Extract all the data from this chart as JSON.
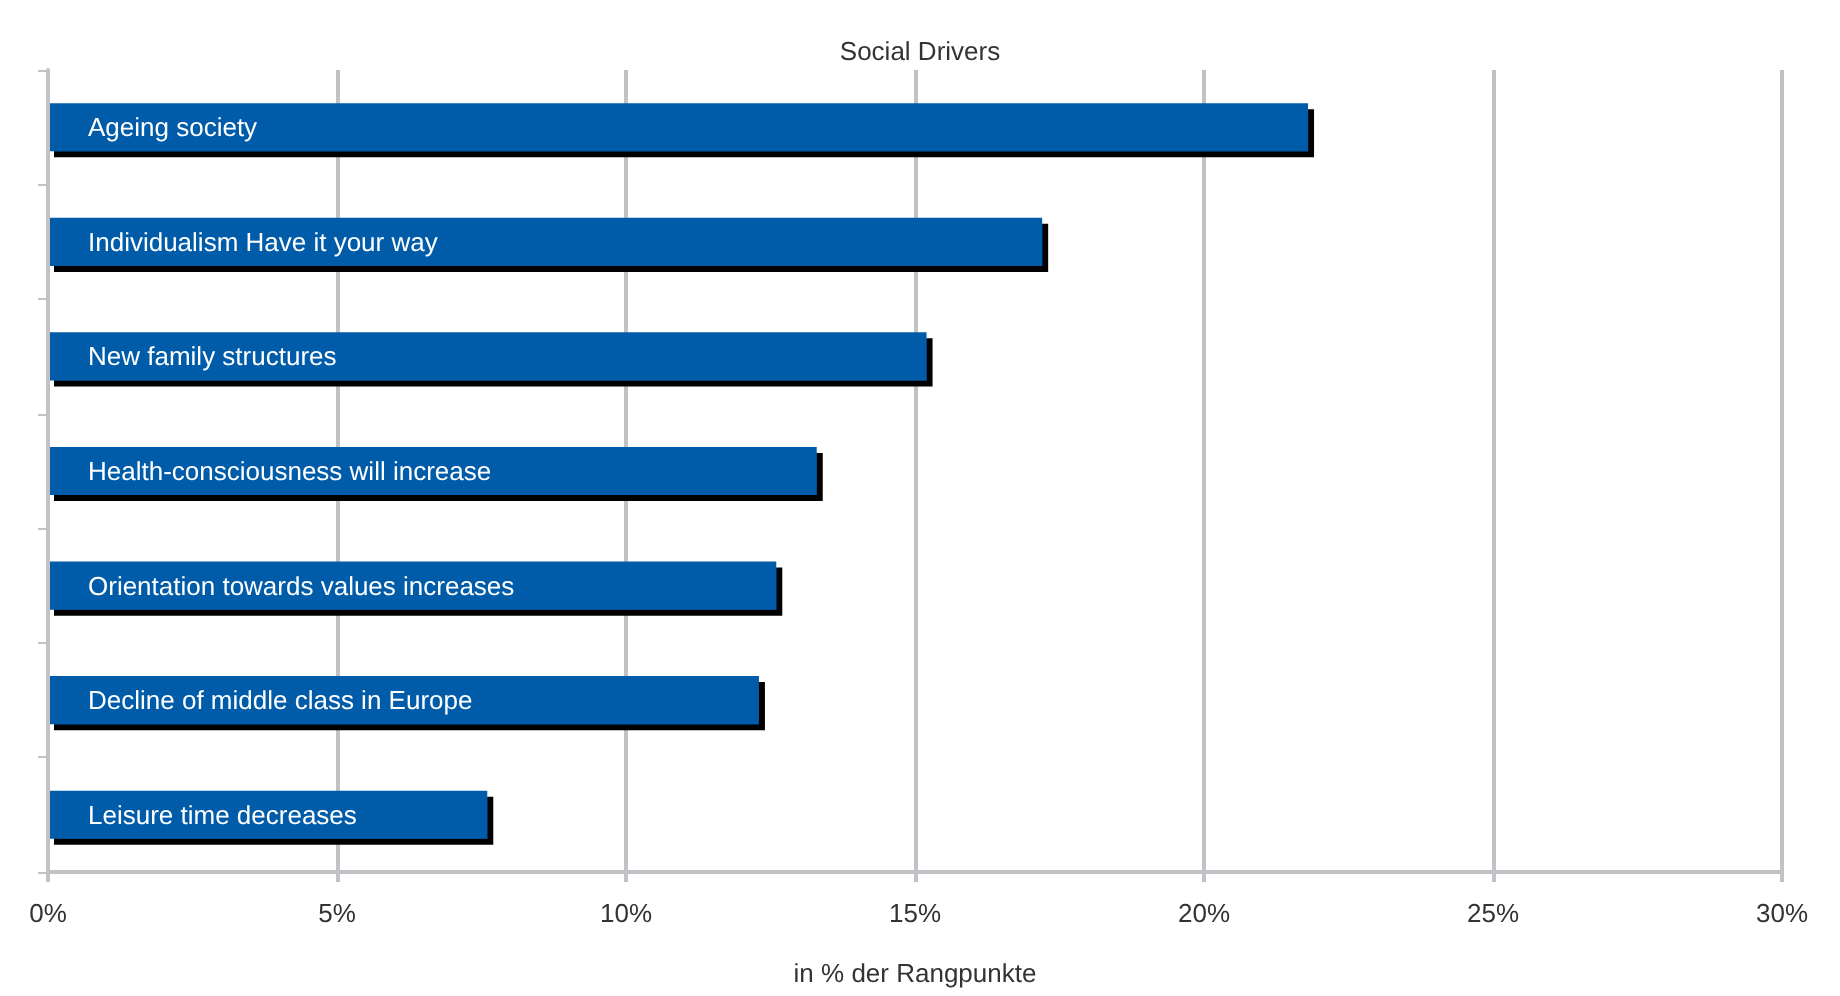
{
  "chart_data": {
    "type": "bar",
    "orientation": "horizontal",
    "title": "Social Drivers",
    "xlabel": "in % der Rangpunkte",
    "categories": [
      "Ageing society",
      "Individualism Have it your way",
      "New family structures",
      "Health-consciousness will increase",
      "Orientation towards values increases",
      "Decline of middle class in Europe",
      "Leisure time decreases"
    ],
    "values": [
      21.8,
      17.2,
      15.2,
      13.3,
      12.6,
      12.3,
      7.6
    ],
    "color": "#005ca9",
    "xlim": [
      0,
      30
    ],
    "xticks": [
      {
        "value": 0,
        "label": "0%"
      },
      {
        "value": 5,
        "label": "5%"
      },
      {
        "value": 10,
        "label": "10%"
      },
      {
        "value": 15,
        "label": "15%"
      },
      {
        "value": 20,
        "label": "20%"
      },
      {
        "value": 25,
        "label": "25%"
      },
      {
        "value": 30,
        "label": "30%"
      }
    ],
    "grid": "x"
  }
}
